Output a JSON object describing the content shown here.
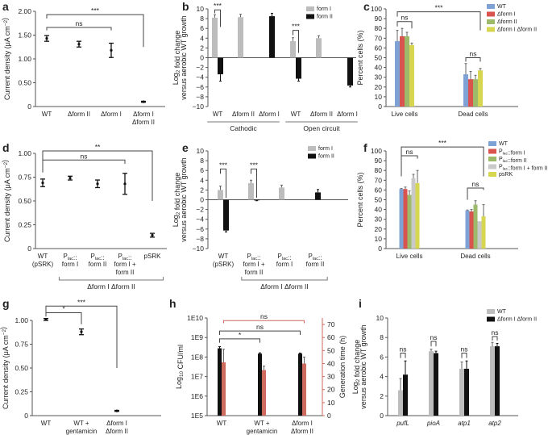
{
  "chart_data": [
    {
      "id": "a",
      "type": "scatter",
      "panel_label": "a",
      "ylabel": [
        "Current density (μA cm−2)"
      ],
      "ylim": [
        0,
        2
      ],
      "yticks": [
        0,
        0.5,
        1,
        1.5,
        2
      ],
      "ytick_labels": [
        "0",
        "0.50",
        "1.00",
        "1.50",
        "2.00"
      ],
      "categories": [
        [
          "WT"
        ],
        [
          "Δform II"
        ],
        [
          "Δform I"
        ],
        [
          "Δform I",
          "Δform II"
        ]
      ],
      "series": [
        {
          "name": "current density",
          "color": "#111111",
          "values": [
            1.43,
            1.31,
            1.18,
            0.1
          ],
          "errors": [
            0.06,
            0.06,
            0.15,
            0.01
          ]
        }
      ],
      "annotations": [
        {
          "label": "***",
          "from": [
            0,
            0
          ],
          "to": [
            3,
            0
          ],
          "y": 1.93,
          "left_to": 1.85,
          "right_to": 1.25
        },
        {
          "label": "ns",
          "from": [
            0,
            0
          ],
          "to": [
            2,
            0
          ],
          "y": 1.66,
          "left_to": 1.6,
          "right_to": 1.6
        }
      ]
    },
    {
      "id": "b",
      "type": "bar",
      "panel_label": "b",
      "ylabel": [
        "Log2 fold change",
        "versus aerobic WT growth"
      ],
      "ylim": [
        -10,
        10
      ],
      "yticks": [
        -10,
        -8,
        -6,
        -4,
        -2,
        0,
        2,
        4,
        6,
        8,
        10
      ],
      "ytick_labels": [
        "−10",
        "−8",
        "−6",
        "−4",
        "−2",
        "0",
        "2",
        "4",
        "6",
        "8",
        "10"
      ],
      "categories": [
        [
          "WT"
        ],
        [
          "Δform II"
        ],
        [
          "Δform I"
        ],
        [
          "WT"
        ],
        [
          "Δform II"
        ],
        [
          "Δform I"
        ]
      ],
      "groups": [
        {
          "label": "Cathodic",
          "from": 0,
          "to": 2
        },
        {
          "label": "Open circuit",
          "from": 3,
          "to": 5
        }
      ],
      "legend": "top-right",
      "series": [
        {
          "name": "form I",
          "color": "#bdbdbd",
          "values": [
            8.2,
            8.3,
            null,
            3.4,
            4.0,
            null
          ],
          "errors": [
            0.6,
            0.6,
            null,
            0.7,
            0.5,
            null
          ]
        },
        {
          "name": "form II",
          "color": "#111111",
          "values": [
            -3.4,
            null,
            8.5,
            -4.3,
            null,
            -5.7
          ],
          "errors": [
            1.4,
            null,
            0.6,
            0.5,
            null,
            0.3
          ]
        }
      ],
      "annotations": [
        {
          "label": "***",
          "from": [
            0,
            0
          ],
          "to": [
            0,
            1
          ],
          "y": 9.8,
          "left_to": 9.1,
          "right_to": 6.3
        },
        {
          "label": "***",
          "from": [
            3,
            0
          ],
          "to": [
            3,
            1
          ],
          "y": 5.6,
          "left_to": 4.6,
          "right_to": 1.0
        }
      ]
    },
    {
      "id": "c",
      "type": "bar",
      "panel_label": "c",
      "ylabel": [
        "Percent cells (%)"
      ],
      "ylim": [
        0,
        100
      ],
      "yticks": [
        0,
        10,
        20,
        30,
        40,
        50,
        60,
        70,
        80,
        90,
        100
      ],
      "ytick_labels": [
        "0",
        "10",
        "20",
        "30",
        "40",
        "50",
        "60",
        "70",
        "80",
        "90",
        "100"
      ],
      "categories": [
        [
          "Live cells"
        ],
        [
          "Dead cells"
        ]
      ],
      "legend": "top-right",
      "series": [
        {
          "name": "WT",
          "color": "#7fa2d6",
          "values": [
            67,
            33
          ],
          "errors": [
            11,
            11
          ]
        },
        {
          "name": "Δform I",
          "color": "#d9534f",
          "values": [
            72,
            28
          ],
          "errors": [
            8,
            8
          ]
        },
        {
          "name": "Δform II",
          "color": "#9dba6a",
          "values": [
            72,
            28
          ],
          "errors": [
            4,
            4
          ]
        },
        {
          "name": "Δform I Δform II",
          "color": "#d6d650",
          "values": [
            63,
            37
          ],
          "errors": [
            2,
            2
          ]
        }
      ],
      "annotations": [
        {
          "label": "***",
          "from": [
            0,
            0
          ],
          "to": [
            1,
            3
          ],
          "y": 97,
          "left_to": 92,
          "right_to": 78
        },
        {
          "label": "ns",
          "from": [
            0,
            0
          ],
          "to": [
            0,
            3
          ],
          "y": 87,
          "left_to": 82,
          "right_to": 80
        },
        {
          "label": "ns",
          "from": [
            1,
            0
          ],
          "to": [
            1,
            3
          ],
          "y": 50,
          "left_to": 46,
          "right_to": 46
        }
      ]
    },
    {
      "id": "d",
      "type": "scatter",
      "panel_label": "d",
      "ylabel": [
        "Current density (μA cm−2)"
      ],
      "ylim": [
        0,
        1
      ],
      "yticks": [
        0,
        0.25,
        0.5,
        0.75,
        1
      ],
      "ytick_labels": [
        "0",
        "0.25",
        "0.50",
        "0.75",
        "1.00"
      ],
      "categories": [
        [
          "WT",
          "(pSRK)"
        ],
        [
          "Plac::",
          "form I"
        ],
        [
          "Plac::",
          "form II"
        ],
        [
          "Plac::",
          "form I +",
          "form II"
        ],
        [
          "pSRK"
        ]
      ],
      "groups": [
        {
          "label": "Δform I Δform II",
          "from": 1,
          "to": 4,
          "style": "bracket"
        }
      ],
      "series": [
        {
          "name": "current density",
          "color": "#111111",
          "values": [
            0.69,
            0.74,
            0.68,
            0.68,
            0.14
          ],
          "errors": [
            0.04,
            0.02,
            0.04,
            0.11,
            0.02
          ]
        }
      ],
      "annotations": [
        {
          "label": "**",
          "from": [
            0,
            0
          ],
          "to": [
            4,
            0
          ],
          "y": 1.025,
          "left_to": 0.8,
          "right_to": 0.5
        },
        {
          "label": "ns",
          "from": [
            0,
            0
          ],
          "to": [
            3,
            0
          ],
          "y": 0.93,
          "left_to": 0.8,
          "right_to": 0.89
        }
      ]
    },
    {
      "id": "e",
      "type": "bar",
      "panel_label": "e",
      "ylabel": [
        "Log2 fold change",
        "versus aerobic WT growth"
      ],
      "ylim": [
        -10,
        10
      ],
      "yticks": [
        -10,
        -8,
        -6,
        -4,
        -2,
        0,
        2,
        4,
        6,
        8,
        10
      ],
      "ytick_labels": [
        "−10",
        "−8",
        "−6",
        "−4",
        "−2",
        "0",
        "2",
        "4",
        "6",
        "8",
        "10"
      ],
      "categories": [
        [
          "WT",
          "(pSRK)"
        ],
        [
          "Plac::",
          "form I +",
          "form II"
        ],
        [
          "Plac::",
          "form I"
        ],
        [
          "Plac::",
          "form II"
        ]
      ],
      "groups": [
        {
          "label": "Δform I Δform II",
          "from": 1,
          "to": 3,
          "style": "bracket"
        }
      ],
      "legend": "top-right",
      "series": [
        {
          "name": "form I",
          "color": "#bdbdbd",
          "values": [
            2.0,
            3.4,
            2.5,
            null
          ],
          "errors": [
            0.8,
            0.6,
            0.5,
            null
          ]
        },
        {
          "name": "form II",
          "color": "#111111",
          "values": [
            -6.3,
            -0.1,
            null,
            1.5
          ],
          "errors": [
            0.3,
            0.1,
            null,
            0.6
          ]
        }
      ],
      "annotations": [
        {
          "label": "***",
          "from": [
            0,
            0
          ],
          "to": [
            0,
            1
          ],
          "y": 6.3,
          "left_to": 5.3,
          "right_to": 0.4
        },
        {
          "label": "***",
          "from": [
            1,
            0
          ],
          "to": [
            1,
            1
          ],
          "y": 6.3,
          "left_to": 5.3,
          "right_to": 0.4
        }
      ]
    },
    {
      "id": "f",
      "type": "bar",
      "panel_label": "f",
      "ylabel": [
        "Percent cells (%)"
      ],
      "ylim": [
        0,
        100
      ],
      "yticks": [
        0,
        10,
        20,
        30,
        40,
        50,
        60,
        70,
        80,
        90,
        100
      ],
      "ytick_labels": [
        "0",
        "10",
        "20",
        "30",
        "40",
        "50",
        "60",
        "70",
        "80",
        "90",
        "100"
      ],
      "categories": [
        [
          "Live cells"
        ],
        [
          "Dead cells"
        ]
      ],
      "legend": "top-right",
      "series": [
        {
          "name": "WT",
          "color": "#7fa2d6",
          "values": [
            61,
            39
          ],
          "errors": [
            0.5,
            0.5
          ]
        },
        {
          "name": "Plac::form I",
          "color": "#d9534f",
          "values": [
            61,
            38
          ],
          "errors": [
            2,
            2
          ]
        },
        {
          "name": "Plac::form II",
          "color": "#9dba6a",
          "values": [
            55,
            45
          ],
          "errors": [
            4,
            4
          ]
        },
        {
          "name": "Plac::form I + form II",
          "color": "#c9c9c9",
          "values": [
            72,
            28
          ],
          "errors": [
            4,
            0
          ]
        },
        {
          "name": "psRK",
          "color": "#d6d650",
          "values": [
            67,
            33
          ],
          "errors": [
            13,
            12
          ]
        }
      ],
      "annotations": [
        {
          "label": "***",
          "from": [
            0,
            0
          ],
          "to": [
            1,
            4
          ],
          "y": 104,
          "left_to": 74,
          "right_to": 74
        },
        {
          "label": "ns",
          "from": [
            0,
            0
          ],
          "to": [
            0,
            4
          ],
          "y": 95,
          "left_to": 92,
          "right_to": 92
        },
        {
          "label": "ns",
          "from": [
            1,
            0
          ],
          "to": [
            1,
            4
          ],
          "y": 62,
          "left_to": 50,
          "right_to": 60
        }
      ]
    },
    {
      "id": "g",
      "type": "scatter",
      "panel_label": "g",
      "ylabel": [
        "Current density (μA cm−2)"
      ],
      "ylim": [
        0,
        1
      ],
      "yticks": [
        0,
        0.25,
        0.5,
        0.75,
        1
      ],
      "ytick_labels": [
        "0",
        "0.25",
        "0.50",
        "0.75",
        "1.00"
      ],
      "categories": [
        [
          "WT"
        ],
        [
          "WT +",
          "gentamicin"
        ],
        [
          "Δform I",
          "Δform II"
        ]
      ],
      "series": [
        {
          "name": "current density",
          "color": "#111111",
          "values": [
            1.01,
            0.88,
            0.05
          ],
          "errors": [
            0.01,
            0.03,
            0.005
          ]
        }
      ],
      "annotations": [
        {
          "label": "***",
          "from": [
            0,
            0
          ],
          "to": [
            2,
            0
          ],
          "y": 1.15,
          "left_to": 1.05,
          "right_to": 0.5
        },
        {
          "label": "*",
          "from": [
            0,
            0
          ],
          "to": [
            1,
            0
          ],
          "y": 1.08,
          "left_to": 1.04,
          "right_to": 0.96
        }
      ]
    },
    {
      "id": "h",
      "type": "bar",
      "panel_label": "h",
      "ylabel": [
        "Log10 CFU/ml"
      ],
      "ylabel_right": [
        "Generation time (h)"
      ],
      "yscale": "log",
      "ylim": [
        100000,
        10000000000
      ],
      "yticks": [
        100000,
        1000000,
        10000000,
        100000000,
        1000000000,
        10000000000
      ],
      "ytick_labels": [
        "1E5",
        "1E6",
        "1E7",
        "1E8",
        "1E9",
        "1E10"
      ],
      "ylim_right": [
        0,
        75
      ],
      "yticks_right": [
        0,
        10,
        20,
        30,
        40,
        50,
        60,
        70
      ],
      "ytick_labels_right": [
        "0",
        "10",
        "20",
        "30",
        "40",
        "50",
        "60",
        "70"
      ],
      "right_color": "#cf6a5f",
      "categories": [
        [
          "WT"
        ],
        [
          "WT +",
          "gentamicin"
        ],
        [
          "Δform I",
          "Δform II"
        ]
      ],
      "series": [
        {
          "name": "CFU/ml",
          "axis": "left",
          "color": "#111111",
          "values": [
            280000000,
            150000000,
            150000000
          ],
          "errors": [
            60000000,
            15000000,
            10000000
          ]
        },
        {
          "name": "Generation time",
          "axis": "right",
          "color": "#cf6a5f",
          "values": [
            41,
            35,
            40
          ],
          "errors": [
            10,
            3,
            5
          ]
        }
      ],
      "annotations": [
        {
          "label": "ns",
          "from": [
            0,
            1
          ],
          "to": [
            2,
            1
          ],
          "y": 73,
          "left_to": 71,
          "right_to": 71,
          "color": "#cf6a5f"
        },
        {
          "label": "ns",
          "from": [
            0,
            0
          ],
          "to": [
            2,
            0
          ],
          "y": 65,
          "left_to": 62,
          "right_to": 62
        },
        {
          "label": "*",
          "from": [
            0,
            0
          ],
          "to": [
            1,
            0
          ],
          "y": 59,
          "left_to": 56,
          "right_to": 56
        }
      ]
    },
    {
      "id": "i",
      "type": "bar",
      "panel_label": "i",
      "ylabel": [
        "Log2 fold change",
        "versus aerobic WT growth"
      ],
      "ylim": [
        0,
        10
      ],
      "yticks": [
        0,
        2,
        4,
        6,
        8,
        10
      ],
      "ytick_labels": [
        "0",
        "2",
        "4",
        "6",
        "8",
        "10"
      ],
      "categories": [
        [
          "pufL"
        ],
        [
          "pioA"
        ],
        [
          "atp1"
        ],
        [
          "atp2"
        ]
      ],
      "italic_categories": true,
      "legend": "top-right",
      "series": [
        {
          "name": "WT",
          "color": "#bdbdbd",
          "values": [
            2.6,
            6.6,
            4.8,
            7.1
          ],
          "errors": [
            1.2,
            0.2,
            0.7,
            0.4
          ]
        },
        {
          "name": "Δform I Δform II",
          "color": "#111111",
          "values": [
            4.2,
            6.4,
            4.8,
            7.1
          ],
          "errors": [
            1.4,
            0.2,
            0.8,
            0.3
          ]
        }
      ],
      "annotations": [
        {
          "label": "ns",
          "from": [
            0,
            0
          ],
          "to": [
            0,
            1
          ],
          "y": 6.4,
          "left_to": 5.9,
          "right_to": 5.9
        },
        {
          "label": "ns",
          "from": [
            1,
            0
          ],
          "to": [
            1,
            1
          ],
          "y": 7.6,
          "left_to": 7.1,
          "right_to": 7.1
        },
        {
          "label": "ns",
          "from": [
            2,
            0
          ],
          "to": [
            2,
            1
          ],
          "y": 6.4,
          "left_to": 5.9,
          "right_to": 5.9
        },
        {
          "label": "ns",
          "from": [
            3,
            0
          ],
          "to": [
            3,
            1
          ],
          "y": 8.1,
          "left_to": 7.7,
          "right_to": 7.7
        }
      ]
    }
  ]
}
